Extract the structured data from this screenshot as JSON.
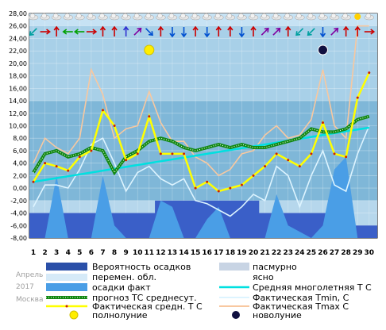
{
  "meta": {
    "month": "Апрель",
    "year": "2017",
    "city": "Москва"
  },
  "legend": {
    "precip_prob": "Вероятность осадков",
    "variable_cloud": "перемен. обл.",
    "precip_fact": "осадки факт",
    "forecast_avg": "прогноз ТС среднесут.",
    "fact_avg": "Фактическая средн. Т С",
    "full_moon": "полнолуние",
    "overcast": "пасмурно",
    "clear": "ясно",
    "climate_avg": "Средняя многолетняя Т С",
    "fact_tmin": "Фактическая Tmin, С",
    "fact_tmax": "Фактическая Tmax С",
    "new_moon": "новолуние"
  },
  "colors": {
    "sky_dark": "#7fb7d8",
    "sky_mid": "#a8d0e8",
    "sky_light": "#c6e2f4",
    "precip_prob": "#3a5fc8",
    "precip_fact": "#4a9ee6",
    "fact_avg": "#ffff00",
    "forecast": "#118811",
    "climate": "#00e0e0",
    "tmin": "#ddf4ff",
    "tmax": "#f8c8a0",
    "full_moon": "#ffee00",
    "new_moon": "#101040"
  },
  "chart_data": {
    "type": "line",
    "x": [
      1,
      2,
      3,
      4,
      5,
      6,
      7,
      8,
      9,
      10,
      11,
      12,
      13,
      14,
      15,
      16,
      17,
      18,
      19,
      20,
      21,
      22,
      23,
      24,
      25,
      26,
      27,
      28,
      29,
      30
    ],
    "ylim": [
      -8,
      28
    ],
    "yticks": [
      "28,00",
      "26,00",
      "24,00",
      "22,00",
      "20,00",
      "18,00",
      "16,00",
      "14,00",
      "12,00",
      "10,00",
      "8,00",
      "6,00",
      "4,00",
      "2,00",
      "0,00",
      "-2,00",
      "-4,00",
      "-6,00",
      "-8,00"
    ],
    "grid": true,
    "series": [
      {
        "name": "Фактическая средн. Т С",
        "values": [
          1.0,
          4.0,
          3.5,
          2.8,
          5.0,
          6.0,
          12.5,
          10.0,
          4.5,
          5.5,
          11.5,
          5.5,
          5.5,
          5.5,
          0.0,
          1.0,
          -0.5,
          0.0,
          0.5,
          2.0,
          3.5,
          5.5,
          4.5,
          3.5,
          5.5,
          10.5,
          5.5,
          5.0,
          14.5,
          18.5
        ]
      },
      {
        "name": "прогноз ТС среднесут.",
        "values": [
          2.5,
          5.5,
          6.0,
          5.0,
          5.5,
          6.5,
          6.0,
          2.5,
          5.0,
          6.0,
          7.5,
          8.0,
          7.5,
          6.5,
          6.0,
          6.5,
          7.0,
          6.5,
          7.0,
          6.5,
          6.5,
          7.0,
          7.5,
          8.0,
          9.5,
          9.0,
          9.0,
          9.5,
          11.0,
          11.5
        ]
      },
      {
        "name": "Средняя многолетняя Т С",
        "values": [
          1.0,
          1.3,
          1.6,
          1.9,
          2.2,
          2.5,
          2.8,
          3.1,
          3.4,
          3.7,
          4.0,
          4.3,
          4.6,
          4.9,
          5.2,
          5.5,
          5.8,
          6.1,
          6.4,
          6.7,
          7.0,
          7.3,
          7.6,
          7.9,
          8.2,
          8.5,
          8.8,
          9.1,
          9.4,
          9.7
        ]
      },
      {
        "name": "Фактическая Tmin, С",
        "values": [
          -3.0,
          0.5,
          0.5,
          0.0,
          3.0,
          7.0,
          8.0,
          4.0,
          -0.5,
          2.5,
          3.5,
          1.5,
          0.5,
          1.5,
          -2.0,
          -2.5,
          -3.5,
          -4.5,
          -3.0,
          -1.0,
          -2.0,
          3.5,
          2.0,
          -3.0,
          2.0,
          6.0,
          0.5,
          -0.5,
          5.5,
          10.0
        ]
      },
      {
        "name": "Фактическая Tmax С",
        "values": [
          4.0,
          8.0,
          6.5,
          5.5,
          8.0,
          19.0,
          15.0,
          8.0,
          9.5,
          10.0,
          15.5,
          10.5,
          7.5,
          7.5,
          5.0,
          4.0,
          2.0,
          3.0,
          5.5,
          6.0,
          8.5,
          10.0,
          8.0,
          8.5,
          11.0,
          19.0,
          10.0,
          8.0,
          26.0,
          26.0
        ]
      },
      {
        "name": "осадки факт",
        "values": [
          -8,
          -8,
          2,
          -8,
          -8,
          -8,
          2,
          -6,
          -8,
          -8,
          -8,
          -2,
          -3,
          -8,
          -8,
          -5,
          -3,
          -8,
          -8,
          -8,
          -8,
          -1,
          -6,
          -7,
          -8,
          -6,
          3,
          5,
          -8,
          -8
        ]
      },
      {
        "name": "Вероятность осадков",
        "values": [
          -4,
          -4,
          -4,
          -4,
          -4,
          -4,
          -4,
          -4,
          -4,
          -4,
          -4,
          -2,
          -2,
          -2,
          -2,
          -2,
          -2,
          -2,
          -2,
          -2,
          -4,
          -4,
          -4,
          -4,
          -4,
          -4,
          -4,
          -4,
          -6,
          -6
        ]
      }
    ],
    "full_moon_day": 11,
    "new_moon_day": 26
  }
}
